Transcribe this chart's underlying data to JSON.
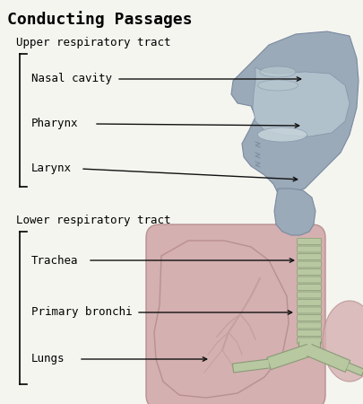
{
  "title": "Conducting Passages",
  "title_fontsize": 13,
  "bg_color": "#f5f5f0",
  "upper_label": "Upper respiratory tract",
  "lower_label": "Lower respiratory tract",
  "upper_items": [
    "Nasal cavity",
    "Pharynx",
    "Larynx"
  ],
  "lower_items": [
    "Trachea",
    "Primary bronchi",
    "Lungs"
  ],
  "item_fontsize": 9,
  "label_fontsize": 9,
  "arrow_color": "#111111",
  "lung_color": "#d4b0b0",
  "lung_edge": "#b89090",
  "lung2_color": "#c8a8a8",
  "trachea_color": "#b8c8a0",
  "trachea_edge": "#8a9a78",
  "nasal_color": "#9aaab8",
  "nasal_edge": "#7a8aa0",
  "nasal_inner": "#b8c8d0",
  "throat_color": "#9aaab8"
}
